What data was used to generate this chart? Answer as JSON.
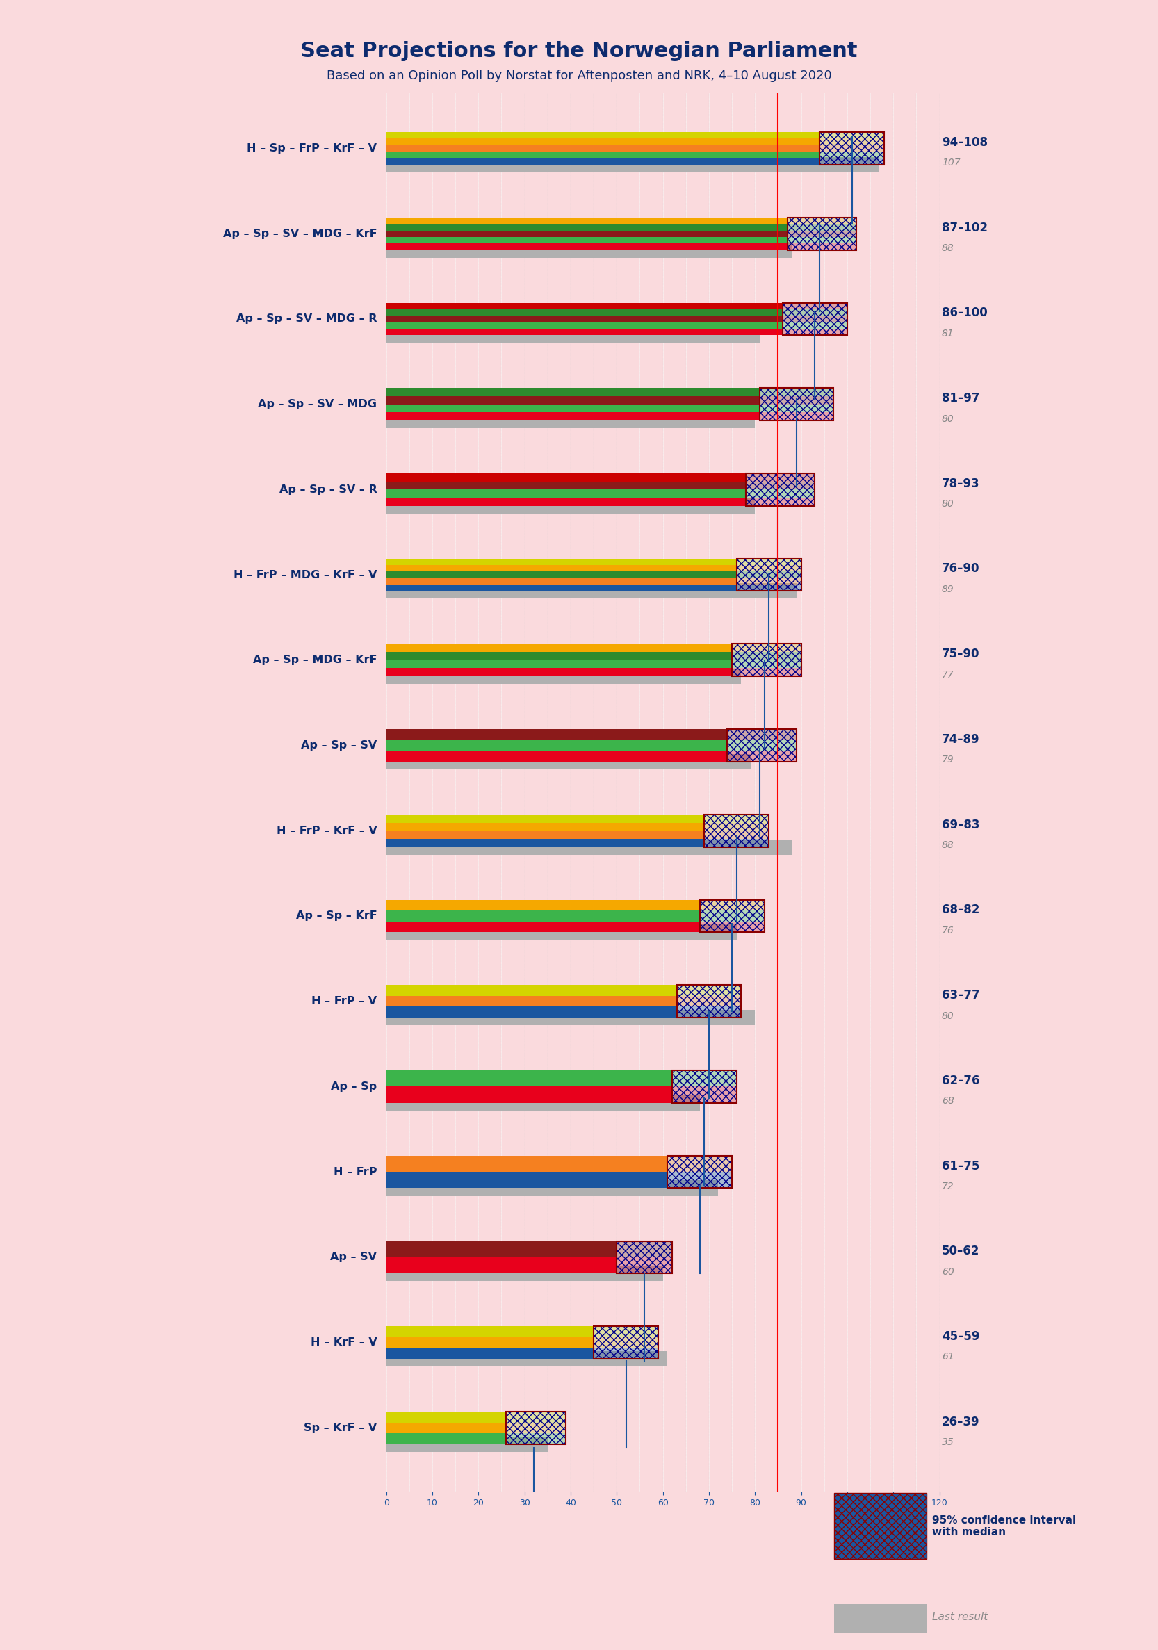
{
  "title": "Seat Projections for the Norwegian Parliament",
  "subtitle": "Based on an Opinion Poll by Norstat for Aftenposten and NRK, 4–10 August 2020",
  "bg_color": "#FADADD",
  "majority_line": 85,
  "xmax": 120,
  "coalitions": [
    {
      "label": "H – Sp – FrP – KrF – V",
      "ci_low": 94,
      "ci_high": 108,
      "median": 101,
      "last_result": 107,
      "colors": [
        "#1a56a0",
        "#3cb44b",
        "#f58020",
        "#f5a800",
        "#e8e800"
      ],
      "underline": false
    },
    {
      "label": "Ap – Sp – SV – MDG – KrF",
      "ci_low": 87,
      "ci_high": 102,
      "median": 94,
      "last_result": 88,
      "colors": [
        "#e8001c",
        "#3cb44b",
        "#b22222",
        "#4caf50",
        "#f5a800"
      ],
      "underline": false
    },
    {
      "label": "Ap – Sp – SV – MDG – R",
      "ci_low": 86,
      "ci_high": 100,
      "median": 93,
      "last_result": 81,
      "colors": [
        "#e8001c",
        "#3cb44b",
        "#b22222",
        "#4caf50",
        "#cc0000"
      ],
      "underline": false
    },
    {
      "label": "Ap – Sp – SV – MDG",
      "ci_low": 81,
      "ci_high": 97,
      "median": 89,
      "last_result": 80,
      "colors": [
        "#e8001c",
        "#3cb44b",
        "#b22222",
        "#4caf50"
      ],
      "underline": false
    },
    {
      "label": "Ap – Sp – SV – R",
      "ci_low": 78,
      "ci_high": 93,
      "median": 85,
      "last_result": 80,
      "colors": [
        "#e8001c",
        "#3cb44b",
        "#b22222",
        "#cc0000"
      ],
      "underline": false
    },
    {
      "label": "H – FrP – MDG – KrF – V",
      "ci_low": 76,
      "ci_high": 90,
      "median": 83,
      "last_result": 89,
      "colors": [
        "#1a56a0",
        "#f58020",
        "#4caf50",
        "#f5a800",
        "#e8e800"
      ],
      "underline": false
    },
    {
      "label": "Ap – Sp – MDG – KrF",
      "ci_low": 75,
      "ci_high": 90,
      "median": 82,
      "last_result": 77,
      "colors": [
        "#e8001c",
        "#3cb44b",
        "#4caf50",
        "#f5a800"
      ],
      "underline": false
    },
    {
      "label": "Ap – Sp – SV",
      "ci_low": 74,
      "ci_high": 89,
      "median": 81,
      "last_result": 79,
      "colors": [
        "#e8001c",
        "#3cb44b",
        "#b22222"
      ],
      "underline": false
    },
    {
      "label": "H – FrP – KrF – V",
      "ci_low": 69,
      "ci_high": 83,
      "median": 76,
      "last_result": 88,
      "colors": [
        "#1a56a0",
        "#f58020",
        "#f5a800",
        "#e8e800"
      ],
      "underline": true
    },
    {
      "label": "Ap – Sp – KrF",
      "ci_low": 68,
      "ci_high": 82,
      "median": 75,
      "last_result": 76,
      "colors": [
        "#e8001c",
        "#3cb44b",
        "#f5a800"
      ],
      "underline": false
    },
    {
      "label": "H – FrP – V",
      "ci_low": 63,
      "ci_high": 77,
      "median": 70,
      "last_result": 80,
      "colors": [
        "#1a56a0",
        "#f58020",
        "#e8e800"
      ],
      "underline": false
    },
    {
      "label": "Ap – Sp",
      "ci_low": 62,
      "ci_high": 76,
      "median": 69,
      "last_result": 68,
      "colors": [
        "#e8001c",
        "#3cb44b"
      ],
      "underline": false
    },
    {
      "label": "H – FrP",
      "ci_low": 61,
      "ci_high": 75,
      "median": 68,
      "last_result": 72,
      "colors": [
        "#1a56a0",
        "#f58020"
      ],
      "underline": false
    },
    {
      "label": "Ap – SV",
      "ci_low": 50,
      "ci_high": 62,
      "median": 56,
      "last_result": 60,
      "colors": [
        "#e8001c",
        "#b22222"
      ],
      "underline": false
    },
    {
      "label": "H – KrF – V",
      "ci_low": 45,
      "ci_high": 59,
      "median": 52,
      "last_result": 61,
      "colors": [
        "#1a56a0",
        "#f5a800",
        "#e8e800"
      ],
      "underline": false
    },
    {
      "label": "Sp – KrF – V",
      "ci_low": 26,
      "ci_high": 39,
      "median": 32,
      "last_result": 35,
      "colors": [
        "#3cb44b",
        "#f5a800",
        "#e8e800"
      ],
      "underline": false
    }
  ],
  "party_colors": {
    "H": "#1a56a0",
    "Sp": "#3cb44b",
    "FrP": "#f58020",
    "KrF": "#f5a800",
    "V": "#e8e800",
    "Ap": "#e8001c",
    "SV": "#b22222",
    "MDG": "#4caf50",
    "R": "#cc0000"
  }
}
